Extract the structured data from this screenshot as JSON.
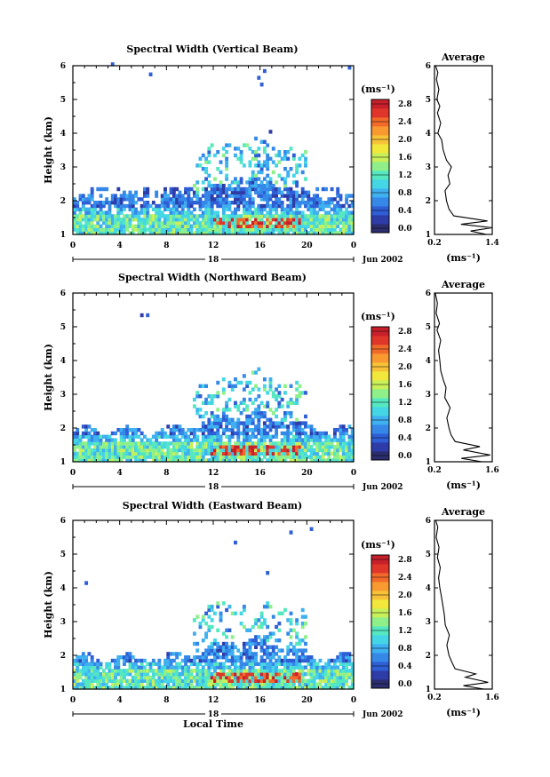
{
  "chart_data": [
    {
      "type": "heatmap",
      "title": "Spectral Width (Vertical Beam)",
      "ylabel": "Height (km)",
      "xlim": [
        0,
        24
      ],
      "ylim": [
        1,
        6
      ],
      "xticks": [
        "0",
        "4",
        "8",
        "12",
        "16",
        "20",
        "0"
      ],
      "yticks": [
        "1",
        "2",
        "3",
        "4",
        "5",
        "6"
      ],
      "date_label": "Jun 2002",
      "day_label": "18",
      "colorbar": {
        "unit": "(ms⁻¹)",
        "ticks": [
          "0.0",
          "0.4",
          "0.8",
          "1.2",
          "1.6",
          "2.0",
          "2.4",
          "2.8"
        ],
        "max": 3.0
      },
      "average": {
        "title": "Average",
        "xlabel": "(ms⁻¹)",
        "xlim": [
          0.2,
          1.4
        ],
        "xticks": [
          "0.2",
          "1.4"
        ],
        "yticks": [
          "1",
          "2",
          "3",
          "4",
          "5",
          "6"
        ],
        "profile": [
          [
            1.28,
            1.0
          ],
          [
            0.95,
            1.1
          ],
          [
            1.4,
            1.2
          ],
          [
            0.75,
            1.3
          ],
          [
            1.3,
            1.4
          ],
          [
            0.6,
            1.55
          ],
          [
            0.5,
            1.75
          ],
          [
            0.45,
            2.0
          ],
          [
            0.42,
            2.3
          ],
          [
            0.52,
            2.5
          ],
          [
            0.48,
            2.75
          ],
          [
            0.55,
            3.0
          ],
          [
            0.45,
            3.2
          ],
          [
            0.38,
            3.5
          ],
          [
            0.35,
            3.8
          ],
          [
            0.27,
            4.0
          ],
          [
            0.33,
            4.3
          ],
          [
            0.26,
            4.6
          ],
          [
            0.31,
            4.8
          ],
          [
            0.25,
            5.0
          ],
          [
            0.29,
            5.3
          ],
          [
            0.24,
            5.6
          ],
          [
            0.27,
            5.8
          ],
          [
            0.22,
            6.0
          ]
        ]
      }
    },
    {
      "type": "heatmap",
      "title": "Spectral Width (Northward Beam)",
      "ylabel": "Height (km)",
      "xlim": [
        0,
        24
      ],
      "ylim": [
        1,
        6
      ],
      "xticks": [
        "0",
        "4",
        "8",
        "12",
        "16",
        "20",
        "0"
      ],
      "yticks": [
        "1",
        "2",
        "3",
        "4",
        "5",
        "6"
      ],
      "date_label": "Jun 2002",
      "day_label": "18",
      "colorbar": {
        "unit": "(ms⁻¹)",
        "ticks": [
          "0.0",
          "0.4",
          "0.8",
          "1.2",
          "1.6",
          "2.0",
          "2.4",
          "2.8"
        ],
        "max": 3.0
      },
      "average": {
        "title": "Average",
        "xlabel": "(ms⁻¹)",
        "xlim": [
          0.2,
          1.6
        ],
        "xticks": [
          "0.2",
          "1.6"
        ],
        "yticks": [
          "1",
          "2",
          "3",
          "4",
          "5",
          "6"
        ],
        "profile": [
          [
            1.35,
            1.0
          ],
          [
            0.85,
            1.1
          ],
          [
            1.55,
            1.2
          ],
          [
            0.9,
            1.35
          ],
          [
            1.3,
            1.45
          ],
          [
            0.7,
            1.6
          ],
          [
            0.6,
            1.8
          ],
          [
            0.55,
            2.0
          ],
          [
            0.5,
            2.3
          ],
          [
            0.58,
            2.6
          ],
          [
            0.45,
            2.9
          ],
          [
            0.48,
            3.2
          ],
          [
            0.42,
            3.4
          ],
          [
            0.35,
            3.7
          ],
          [
            0.33,
            4.0
          ],
          [
            0.3,
            4.3
          ],
          [
            0.35,
            4.6
          ],
          [
            0.26,
            4.9
          ],
          [
            0.32,
            5.1
          ],
          [
            0.24,
            5.4
          ],
          [
            0.27,
            5.7
          ],
          [
            0.22,
            6.0
          ]
        ]
      }
    },
    {
      "type": "heatmap",
      "title": "Spectral Width (Eastward Beam)",
      "ylabel": "Height (km)",
      "xlabel": "Local Time",
      "xlim": [
        0,
        24
      ],
      "ylim": [
        1,
        6
      ],
      "xticks": [
        "0",
        "4",
        "8",
        "12",
        "16",
        "20",
        "0"
      ],
      "yticks": [
        "1",
        "2",
        "3",
        "4",
        "5",
        "6"
      ],
      "date_label": "Jun 2002",
      "day_label": "18",
      "colorbar": {
        "unit": "(ms⁻¹)",
        "ticks": [
          "0.0",
          "0.4",
          "0.8",
          "1.2",
          "1.6",
          "2.0",
          "2.4",
          "2.8"
        ],
        "max": 3.0
      },
      "average": {
        "title": "Average",
        "xlabel": "(ms⁻¹)",
        "xlim": [
          0.2,
          1.6
        ],
        "xticks": [
          "0.2",
          "1.6"
        ],
        "yticks": [
          "1",
          "2",
          "3",
          "4",
          "5",
          "6"
        ],
        "profile": [
          [
            1.4,
            1.0
          ],
          [
            0.9,
            1.1
          ],
          [
            1.5,
            1.2
          ],
          [
            0.95,
            1.35
          ],
          [
            1.2,
            1.45
          ],
          [
            0.7,
            1.6
          ],
          [
            0.62,
            1.8
          ],
          [
            0.55,
            2.0
          ],
          [
            0.5,
            2.3
          ],
          [
            0.56,
            2.6
          ],
          [
            0.46,
            2.9
          ],
          [
            0.44,
            3.2
          ],
          [
            0.4,
            3.5
          ],
          [
            0.36,
            3.8
          ],
          [
            0.33,
            4.0
          ],
          [
            0.3,
            4.3
          ],
          [
            0.34,
            4.6
          ],
          [
            0.27,
            4.9
          ],
          [
            0.31,
            5.2
          ],
          [
            0.24,
            5.5
          ],
          [
            0.28,
            5.8
          ],
          [
            0.23,
            6.0
          ]
        ]
      }
    }
  ]
}
